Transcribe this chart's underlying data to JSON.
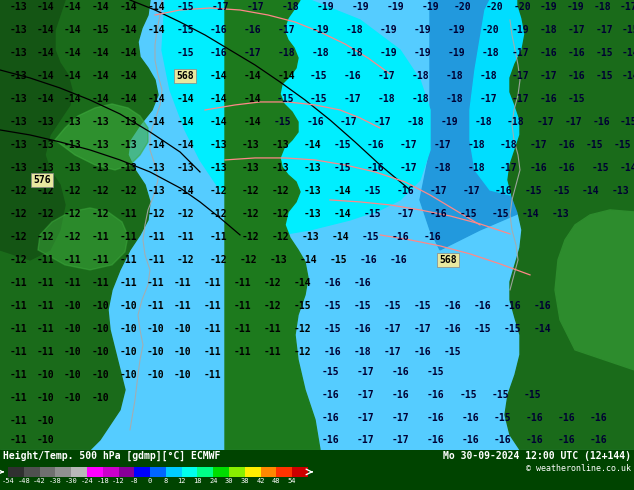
{
  "title_left": "Height/Temp. 500 hPa [gdmp][°C] ECMWF",
  "title_right": "Mo 30-09-2024 12:00 UTC (12+144)",
  "copyright": "© weatheronline.co.uk",
  "colorbar_ticks": [
    -54,
    -48,
    -42,
    -38,
    -30,
    -24,
    -18,
    -12,
    -8,
    0,
    8,
    12,
    18,
    24,
    30,
    38,
    42,
    48,
    54
  ],
  "colorbar_colors": [
    "#303030",
    "#505050",
    "#707070",
    "#909090",
    "#b8b8b8",
    "#ff00ff",
    "#cc00cc",
    "#880099",
    "#0000ff",
    "#0066ff",
    "#00ccff",
    "#00ffee",
    "#00ff88",
    "#00dd00",
    "#88ee00",
    "#ffee00",
    "#ff8800",
    "#ff3300",
    "#cc0000"
  ],
  "land_dark": "#1a5c1a",
  "land_mid": "#2d7a2d",
  "land_light": "#3d9c3d",
  "sea_cyan": "#00e5ff",
  "sea_lightblue": "#55b8ff",
  "sea_blue": "#3399ff",
  "sea_darkblue": "#1166cc",
  "fig_bg": "#004400",
  "text_land": "#000000",
  "text_sea_dark": "#000077",
  "text_sea": "#000033",
  "figsize": [
    6.34,
    4.9
  ],
  "dpi": 100
}
